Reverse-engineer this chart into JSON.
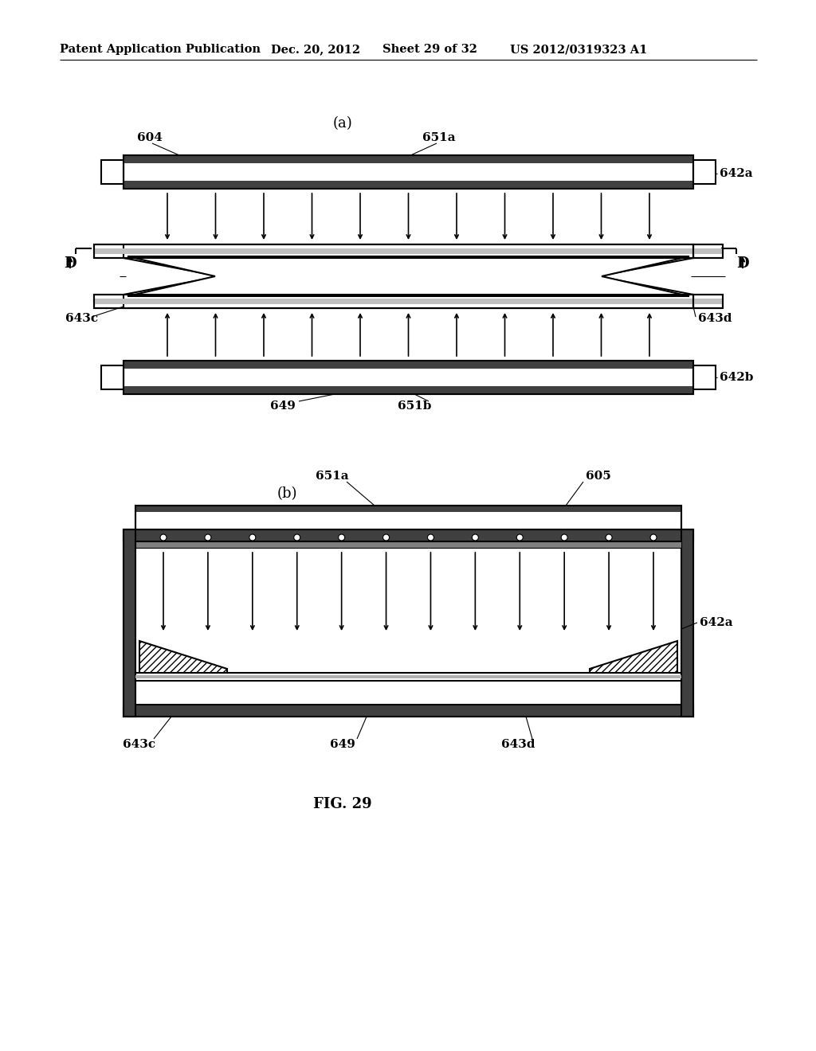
{
  "bg_color": "#ffffff",
  "header_text": "Patent Application Publication",
  "header_date": "Dec. 20, 2012",
  "header_sheet": "Sheet 29 of 32",
  "header_patent": "US 2012/0319323 A1",
  "fig_label": "FIG. 29",
  "diagram_a_label": "(a)",
  "diagram_b_label": "(b)",
  "lc": "#000000",
  "lw": 1.5,
  "tlw": 0.8,
  "gray_fill": "#c0c0c0",
  "dark_fill": "#404040"
}
